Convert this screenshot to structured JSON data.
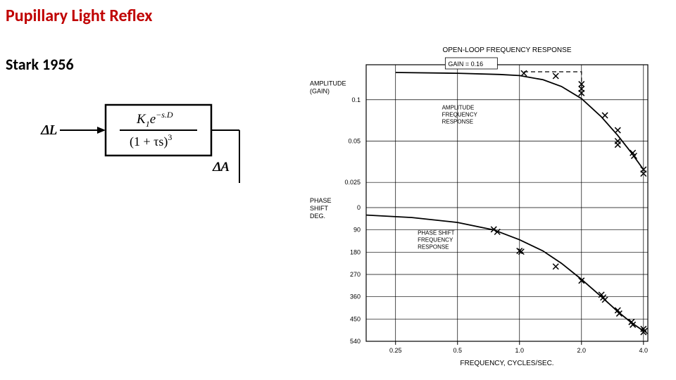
{
  "title": {
    "text": "Pupillary Light Reflex",
    "color": "#c00000",
    "fontsize": 24,
    "fontweight": 700
  },
  "subtitle": {
    "text": "Stark 1956",
    "color": "#000000",
    "fontsize": 22,
    "fontweight": 700
  },
  "block_diagram": {
    "type": "flowchart",
    "input_label": "ΔL",
    "output_label": "ΔA",
    "numerator_prefix": "K",
    "numerator_sub": "1",
    "numerator_e": "e",
    "numerator_exp": "−s.D",
    "denominator": "(1 + τs)",
    "denominator_exp": "3",
    "box_border_color": "#000000",
    "line_color": "#000000",
    "box_border_width": 2.5,
    "arrow_line_width": 2,
    "frac_line_width": 2,
    "font_family": "serif"
  },
  "bode_plot": {
    "type": "bode",
    "background_color": "#ffffff",
    "line_color": "#000000",
    "line_width": 1.8,
    "grid_color": "#000000",
    "grid_width": 0.7,
    "marker": "x",
    "marker_size": 8,
    "marker_color": "#000000",
    "font_family": "Arial",
    "title_text": "OPEN-LOOP FREQUENCY RESPONSE",
    "title_fontsize": 10,
    "gain_label": "GAIN = 0.16",
    "gain_label_fontsize": 9,
    "x_axis": {
      "label": "FREQUENCY, CYCLES/SEC.",
      "label_fontsize": 10,
      "scale": "log",
      "ticks": [
        0.25,
        0.5,
        1.0,
        2.0,
        4.0
      ],
      "tick_labels": [
        "0.25",
        "0.5",
        "1.0",
        "2.0",
        "4.0"
      ],
      "tick_fontsize": 9
    },
    "amplitude_panel": {
      "ylabel_lines": [
        "AMPLITUDE",
        "(GAIN)"
      ],
      "ylabel_fontsize": 9,
      "annotation_lines": [
        "AMPLITUDE",
        "FREQUENCY",
        "RESPONSE"
      ],
      "annotation_fontsize": 8,
      "scale": "log",
      "ylim": [
        0.022,
        0.18
      ],
      "ticks": [
        0.1,
        0.05,
        0.025
      ],
      "tick_labels": [
        "0.1",
        "0.05",
        "0.025"
      ],
      "asymptote_dash": "6,4",
      "asymptote_points": [
        [
          1.05,
          0.16
        ],
        [
          2.0,
          0.16
        ],
        [
          2.0,
          0.102
        ]
      ],
      "curve": [
        [
          0.25,
          0.158
        ],
        [
          0.5,
          0.156
        ],
        [
          0.8,
          0.153
        ],
        [
          1.0,
          0.15
        ],
        [
          1.3,
          0.14
        ],
        [
          1.6,
          0.125
        ],
        [
          2.0,
          0.102
        ],
        [
          2.5,
          0.075
        ],
        [
          3.0,
          0.055
        ],
        [
          3.5,
          0.041
        ],
        [
          4.0,
          0.031
        ]
      ],
      "data_points": [
        [
          1.05,
          0.156
        ],
        [
          1.5,
          0.149
        ],
        [
          2.0,
          0.13
        ],
        [
          2.0,
          0.12
        ],
        [
          2.0,
          0.112
        ],
        [
          2.6,
          0.077
        ],
        [
          3.0,
          0.06
        ],
        [
          3.0,
          0.05
        ],
        [
          3.0,
          0.047
        ],
        [
          3.55,
          0.041
        ],
        [
          3.6,
          0.039
        ],
        [
          4.0,
          0.031
        ],
        [
          4.0,
          0.029
        ]
      ]
    },
    "phase_panel": {
      "ylabel_lines": [
        "PHASE",
        "SHIFT",
        "DEG."
      ],
      "ylabel_fontsize": 9,
      "annotation_lines": [
        "PHASE SHIFT",
        "FREQUENCY",
        "RESPONSE"
      ],
      "annotation_fontsize": 8,
      "scale": "linear",
      "ylim": [
        0,
        540
      ],
      "ticks": [
        0,
        90,
        180,
        270,
        360,
        450,
        540
      ],
      "tick_labels": [
        "0",
        "90",
        "180",
        "270",
        "360",
        "450",
        "540"
      ],
      "curve": [
        [
          0.18,
          30
        ],
        [
          0.3,
          40
        ],
        [
          0.5,
          60
        ],
        [
          0.75,
          90
        ],
        [
          1.0,
          130
        ],
        [
          1.3,
          175
        ],
        [
          1.6,
          225
        ],
        [
          2.0,
          290
        ],
        [
          2.5,
          360
        ],
        [
          3.0,
          420
        ],
        [
          3.5,
          465
        ],
        [
          4.0,
          498
        ]
      ],
      "data_points": [
        [
          0.75,
          88
        ],
        [
          0.78,
          98
        ],
        [
          1.0,
          175
        ],
        [
          1.02,
          178
        ],
        [
          1.5,
          238
        ],
        [
          2.0,
          295
        ],
        [
          2.5,
          352
        ],
        [
          2.55,
          363
        ],
        [
          2.6,
          372
        ],
        [
          3.0,
          415
        ],
        [
          3.05,
          428
        ],
        [
          3.5,
          462
        ],
        [
          3.55,
          473
        ],
        [
          4.0,
          490
        ],
        [
          4.0,
          503
        ],
        [
          4.05,
          498
        ]
      ]
    }
  }
}
